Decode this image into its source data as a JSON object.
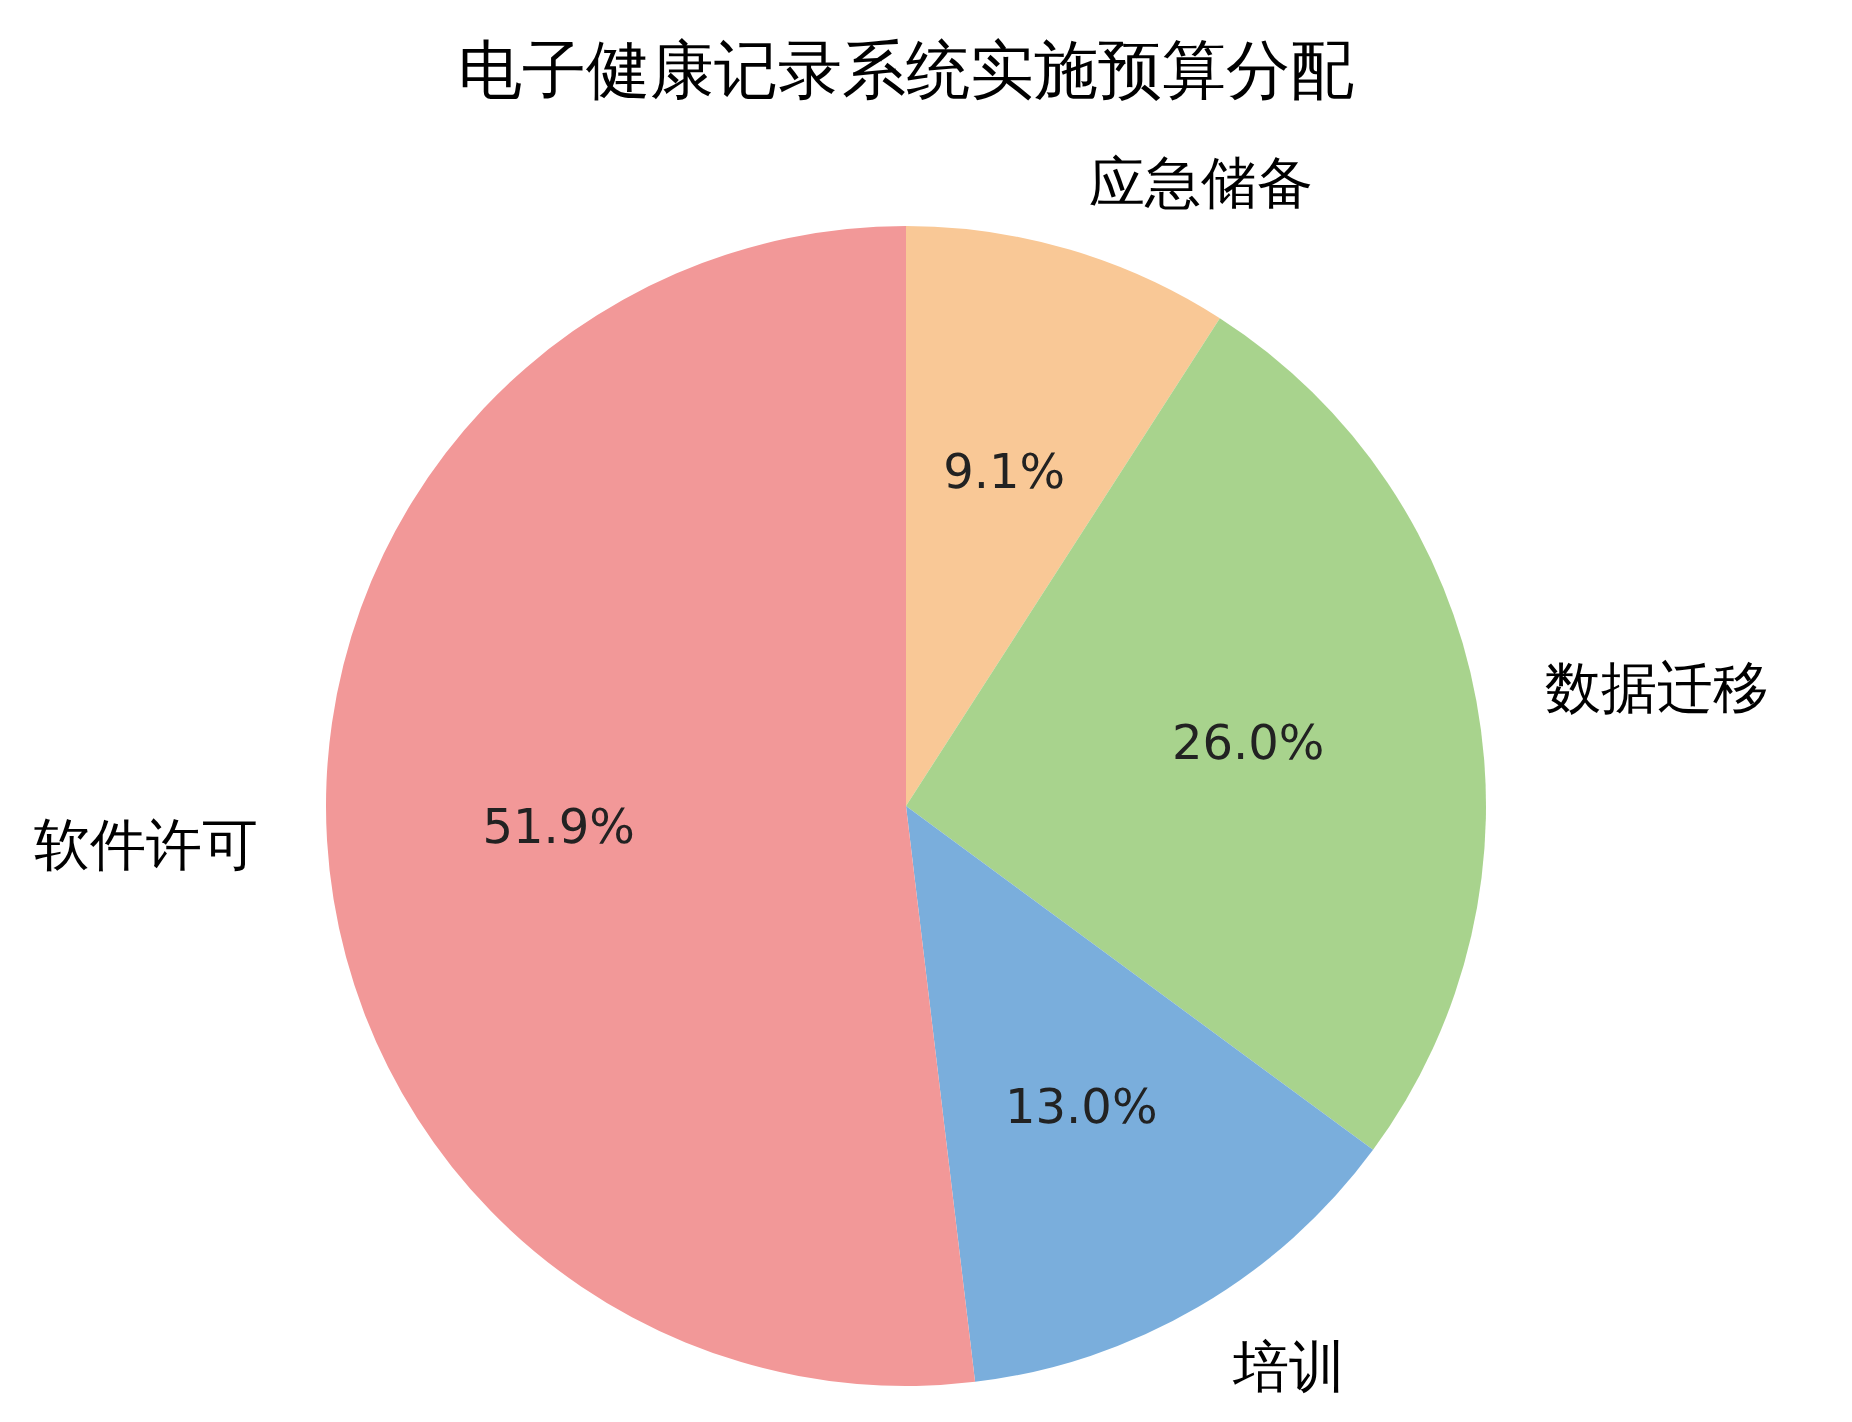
{
  "chart_data": {
    "type": "pie",
    "title": "电子健康记录系统实施预算分配",
    "categories": [
      "应急储备",
      "数据迁移",
      "培训",
      "软件许可"
    ],
    "values": [
      9.1,
      26.0,
      13.0,
      51.9
    ],
    "colors": [
      "#f9c896",
      "#a8d38d",
      "#7aaedc",
      "#f29898"
    ],
    "value_labels": [
      "9.1%",
      "26.0%",
      "13.0%",
      "51.9%"
    ]
  }
}
